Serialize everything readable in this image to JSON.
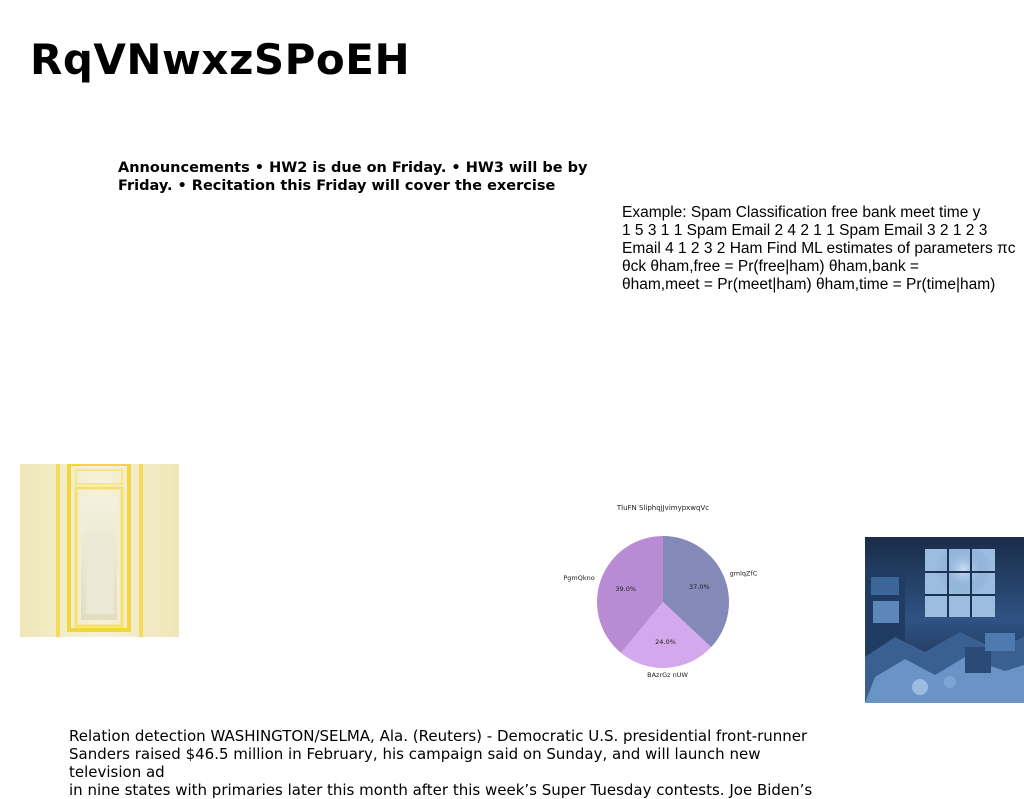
{
  "page": {
    "title": "RqVNwxzSPoEH",
    "announcements": "Announcements • HW2 is due on Friday. • HW3 will be by Friday. • Recitation this Friday will cover the exercise",
    "example": "Example: Spam Classification free bank meet time y\n1 5 3 1 1 Spam Email 2 4 2 1 1 Spam Email 3 2 1 2 3\nEmail 4 1 2 3 2 Ham Find ML estimates of parameters πc\nθck θham,free = Pr(free|ham) θham,bank =\nθham,meet = Pr(meet|ham) θham,time = Pr(time|ham)",
    "bottom_text": "Relation detection WASHINGTON/SELMA, Ala. (Reuters) - Democratic U.S. presidential front-runner\nSanders raised $46.5 million in February, his campaign said on Sunday, and will launch new television ad\nin nine states with primaries later this month after this week’s Super Tuesday contests. Joe Biden’s"
  },
  "chart_data": {
    "type": "pie",
    "title": "TluFN SliphqjJvimypxwqVc",
    "categories": [
      "gmlqZfC",
      "BAzrGz nUW",
      "PgmQkno"
    ],
    "values": [
      37.0,
      24.0,
      39.0
    ],
    "value_labels": [
      "37.0%",
      "24.0%",
      "39.0%"
    ],
    "colors": [
      "#8389b8",
      "#d3a8ec",
      "#b88bd4"
    ],
    "start_angle_deg": 90,
    "direction": "clockwise"
  }
}
